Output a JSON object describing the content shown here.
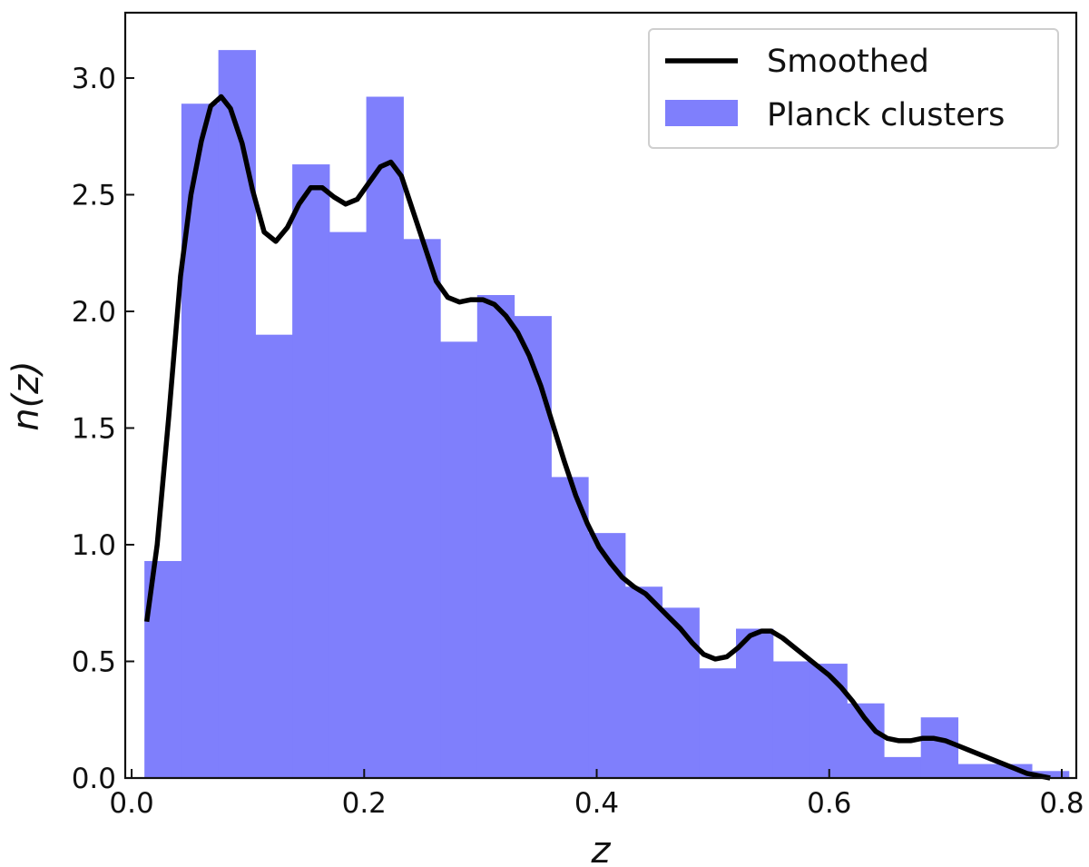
{
  "chart_data": {
    "type": "bar",
    "xlabel": "z",
    "ylabel": "n(z)",
    "xlim": [
      -0.0055,
      0.8125
    ],
    "ylim": [
      0,
      3.28
    ],
    "grid": false,
    "legend_position": "top-right",
    "xticks": [
      {
        "value": 0.0,
        "label": "0.0"
      },
      {
        "value": 0.2,
        "label": "0.2"
      },
      {
        "value": 0.4,
        "label": "0.4"
      },
      {
        "value": 0.6,
        "label": "0.6"
      },
      {
        "value": 0.8,
        "label": "0.8"
      }
    ],
    "yticks": [
      {
        "value": 0.0,
        "label": "0.0"
      },
      {
        "value": 0.5,
        "label": "0.5"
      },
      {
        "value": 1.0,
        "label": "1.0"
      },
      {
        "value": 1.5,
        "label": "1.5"
      },
      {
        "value": 2.0,
        "label": "2.0"
      },
      {
        "value": 2.5,
        "label": "2.5"
      },
      {
        "value": 3.0,
        "label": "3.0"
      }
    ],
    "histogram": {
      "name": "Planck clusters",
      "color": "#7f7ffc",
      "bin_edges": [
        0.011,
        0.0428,
        0.0746,
        0.1064,
        0.1382,
        0.17,
        0.2018,
        0.2336,
        0.2654,
        0.2972,
        0.329,
        0.3608,
        0.3926,
        0.4244,
        0.4562,
        0.488,
        0.5198,
        0.5516,
        0.5834,
        0.6152,
        0.647,
        0.6788,
        0.7106,
        0.7424,
        0.7742,
        0.806
      ],
      "values": [
        0.93,
        2.89,
        3.12,
        1.9,
        2.63,
        2.34,
        2.92,
        2.31,
        1.87,
        2.07,
        1.98,
        1.29,
        1.05,
        0.82,
        0.73,
        0.47,
        0.64,
        0.5,
        0.49,
        0.32,
        0.09,
        0.26,
        0.06,
        0.06,
        0.03
      ]
    },
    "smoothed": {
      "name": "Smoothed",
      "color": "#000000",
      "x": [
        0.013,
        0.022,
        0.032,
        0.042,
        0.051,
        0.06,
        0.068,
        0.077,
        0.085,
        0.095,
        0.104,
        0.114,
        0.124,
        0.134,
        0.144,
        0.154,
        0.164,
        0.174,
        0.184,
        0.194,
        0.204,
        0.214,
        0.223,
        0.232,
        0.242,
        0.252,
        0.262,
        0.272,
        0.282,
        0.292,
        0.302,
        0.312,
        0.322,
        0.332,
        0.342,
        0.352,
        0.362,
        0.372,
        0.382,
        0.392,
        0.402,
        0.412,
        0.422,
        0.432,
        0.442,
        0.452,
        0.462,
        0.472,
        0.482,
        0.492,
        0.502,
        0.512,
        0.522,
        0.532,
        0.542,
        0.55,
        0.56,
        0.57,
        0.58,
        0.59,
        0.6,
        0.61,
        0.62,
        0.63,
        0.64,
        0.65,
        0.66,
        0.67,
        0.68,
        0.69,
        0.7,
        0.71,
        0.72,
        0.73,
        0.74,
        0.75,
        0.76,
        0.77,
        0.78,
        0.79
      ],
      "y": [
        0.67,
        1.0,
        1.55,
        2.15,
        2.5,
        2.73,
        2.88,
        2.92,
        2.87,
        2.72,
        2.52,
        2.34,
        2.3,
        2.36,
        2.46,
        2.53,
        2.53,
        2.49,
        2.46,
        2.48,
        2.55,
        2.62,
        2.64,
        2.58,
        2.43,
        2.28,
        2.13,
        2.06,
        2.04,
        2.05,
        2.05,
        2.03,
        1.98,
        1.91,
        1.81,
        1.68,
        1.52,
        1.36,
        1.21,
        1.09,
        0.99,
        0.92,
        0.86,
        0.82,
        0.79,
        0.74,
        0.69,
        0.64,
        0.58,
        0.53,
        0.51,
        0.52,
        0.56,
        0.61,
        0.63,
        0.63,
        0.6,
        0.56,
        0.52,
        0.48,
        0.44,
        0.39,
        0.33,
        0.26,
        0.2,
        0.17,
        0.16,
        0.16,
        0.17,
        0.17,
        0.16,
        0.14,
        0.12,
        0.1,
        0.08,
        0.06,
        0.04,
        0.02,
        0.01,
        0.0
      ]
    },
    "legend": [
      {
        "label": "Smoothed",
        "kind": "line"
      },
      {
        "label": "Planck clusters",
        "kind": "patch"
      }
    ]
  }
}
